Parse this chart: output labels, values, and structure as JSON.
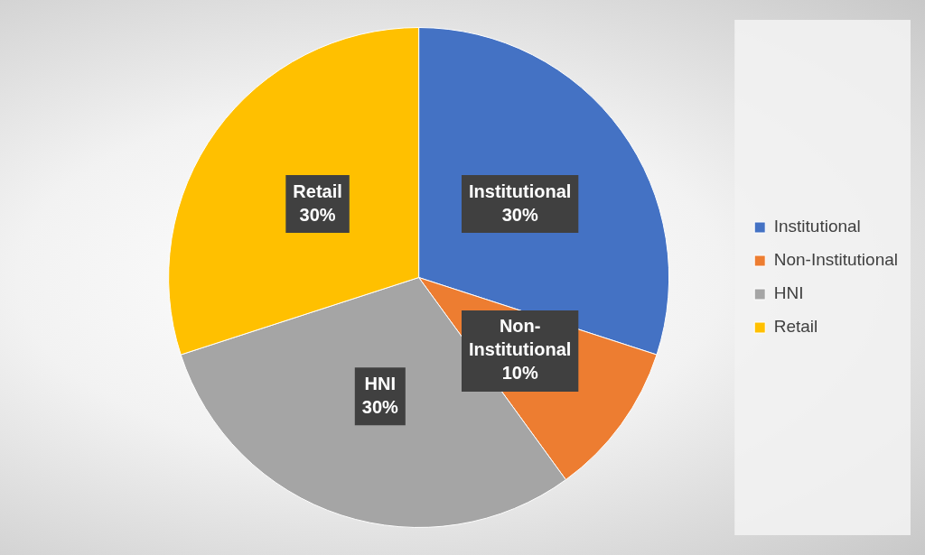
{
  "chart_data": {
    "type": "pie",
    "categories": [
      "Institutional",
      "Non-Institutional",
      "HNI",
      "Retail"
    ],
    "values": [
      30,
      10,
      30,
      30
    ],
    "colors": [
      "#4472c4",
      "#ed7d31",
      "#a5a5a5",
      "#ffc000"
    ],
    "value_labels": [
      "30%",
      "10%",
      "30%",
      "30%"
    ],
    "legend": "right"
  }
}
